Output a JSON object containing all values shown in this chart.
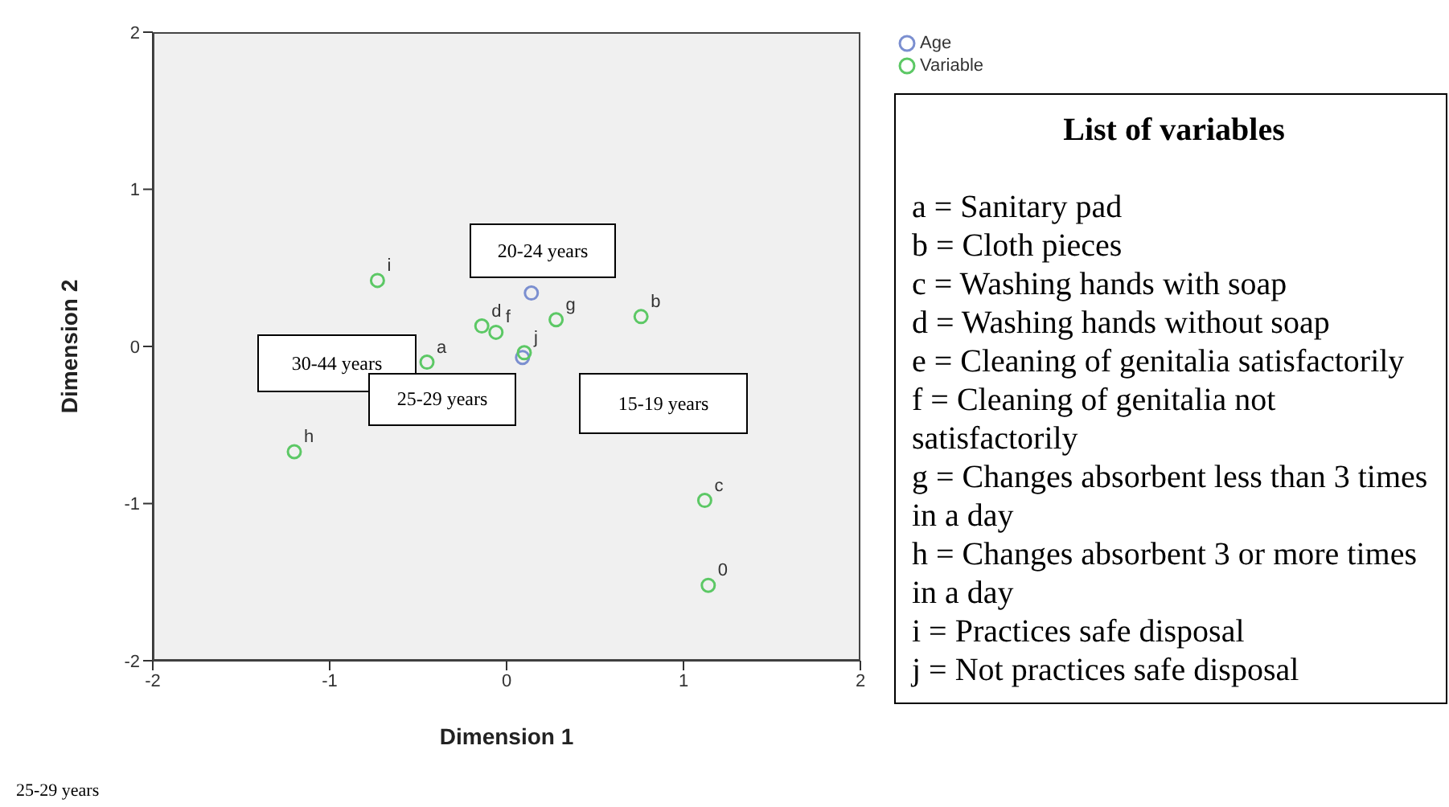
{
  "chart_data": {
    "type": "scatter",
    "xlabel": "Dimension 1",
    "ylabel": "Dimension 2",
    "xlim": [
      -2,
      2
    ],
    "ylim": [
      -2,
      2
    ],
    "xticks": [
      -2,
      -1,
      0,
      1,
      2
    ],
    "yticks": [
      -2,
      -1,
      0,
      1,
      2
    ],
    "marker": "circle",
    "legend": "top right",
    "series": [
      {
        "name": "Age",
        "color": "#7b8fd0",
        "x": [
          0.14,
          0.09
        ],
        "values": [
          0.34,
          -0.07
        ]
      },
      {
        "name": "Variable",
        "color": "#5cc865",
        "x": [
          -0.45,
          0.76,
          1.12,
          -0.14,
          -0.06,
          0.28,
          -1.2,
          -0.73,
          0.1,
          1.14
        ],
        "values": [
          -0.1,
          0.19,
          -0.98,
          0.13,
          0.09,
          0.17,
          -0.67,
          0.42,
          -0.04,
          -1.52
        ]
      }
    ],
    "annotations": [
      {
        "text": "a",
        "x": -0.45,
        "y": -0.1
      },
      {
        "text": "b",
        "x": 0.76,
        "y": 0.19
      },
      {
        "text": "c",
        "x": 1.12,
        "y": -0.98
      },
      {
        "text": "d",
        "x": -0.14,
        "y": 0.13
      },
      {
        "text": "f",
        "x": -0.06,
        "y": 0.09
      },
      {
        "text": "g",
        "x": 0.28,
        "y": 0.17
      },
      {
        "text": "h",
        "x": -1.2,
        "y": -0.67
      },
      {
        "text": "i",
        "x": -0.73,
        "y": 0.42
      },
      {
        "text": "j",
        "x": 0.1,
        "y": -0.04
      },
      {
        "text": "0",
        "x": 1.14,
        "y": -1.52
      },
      "20-24 years",
      "30-44 years",
      "25-29 years",
      "15-19 years",
      "List of variables",
      "a = Sanitary pad",
      "b = Cloth pieces",
      "c = Washing hands with soap",
      "d = Washing hands without soap",
      "e = Cleaning of genitalia satisfactorily",
      "f = Cleaning of genitalia not satisfactorily",
      "g = Changes absorbent less than 3 times in a day",
      "h = Changes absorbent 3 or more times in a day",
      "i = Practices safe disposal",
      "j = Not practices safe disposal",
      "25-29 years"
    ]
  }
}
